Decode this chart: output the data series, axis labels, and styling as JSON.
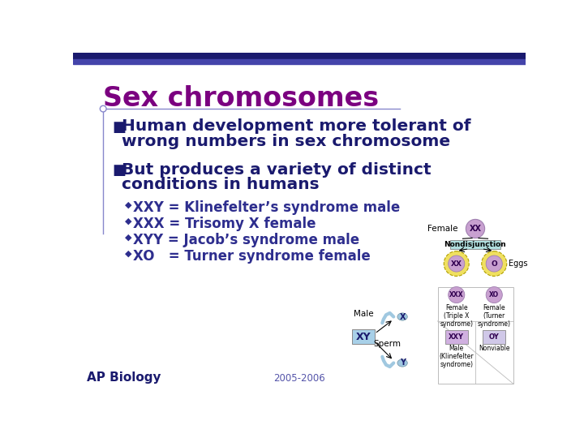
{
  "bg_color": "#ffffff",
  "top_bar_color": "#1a1a6e",
  "top_bar2_color": "#4444aa",
  "title": "Sex chromosomes",
  "title_color": "#7b0080",
  "title_underline_color": "#8888cc",
  "bullet_color": "#1a1a6e",
  "bullet1_line1": "Human development more tolerant of",
  "bullet1_line2": "wrong numbers in sex chromosome",
  "bullet2_line1": "But produces a variety of distinct",
  "bullet2_line2": "conditions in humans",
  "sub_bullets": [
    "XXY = Klinefelter’s syndrome male",
    "XXX = Trisomy X female",
    "XYY = Jacob’s syndrome male",
    "XO   = Turner syndrome female"
  ],
  "sub_bullet_color": "#2e2e8e",
  "footer_text": "AP Biology",
  "footer_color": "#1a1a6e",
  "year_text": "2005-2006",
  "year_color": "#5555aa",
  "purple_circle": "#c8a0d0",
  "yellow_egg": "#f0e060",
  "light_blue_sperm": "#a0c8e0",
  "nd_box_color": "#b0dede",
  "xxy_box_color": "#d0b0e0",
  "oy_box_color": "#d0c8e8",
  "xy_box_color": "#a8d0e8"
}
